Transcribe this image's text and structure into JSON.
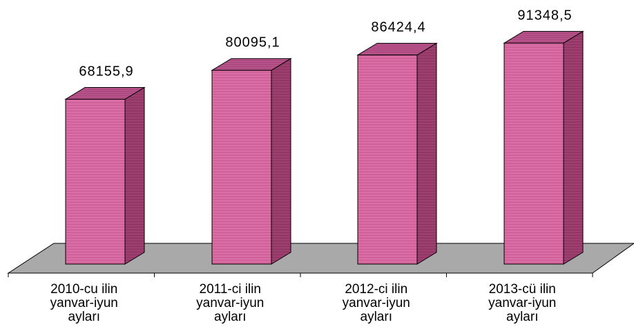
{
  "chart_data": {
    "type": "bar",
    "style": "3d-column",
    "title": "",
    "xlabel": "",
    "ylabel": "",
    "ylim": [
      0,
      100000
    ],
    "grid": false,
    "legend": "none",
    "categories": [
      [
        "2010-cu ilin",
        "yanvar-iyun",
        "ayları"
      ],
      [
        "2011-ci ilin",
        "yanvar-iyun",
        "ayları"
      ],
      [
        "2012-ci ilin",
        "yanvar-iyun",
        "ayları"
      ],
      [
        "2013-cü ilin",
        "yanvar-iyun",
        "ayları"
      ]
    ],
    "values": [
      68155.9,
      80095.1,
      86424.4,
      91348.5
    ],
    "value_labels": [
      "68155,9",
      "80095,1",
      "86424,4",
      "91348,5"
    ],
    "colors": {
      "bar_front": "#d96ca3",
      "bar_side": "#9c3f6e",
      "bar_top": "#b8528a",
      "floor": "#a9a9a9",
      "background": "#ffffff"
    }
  }
}
